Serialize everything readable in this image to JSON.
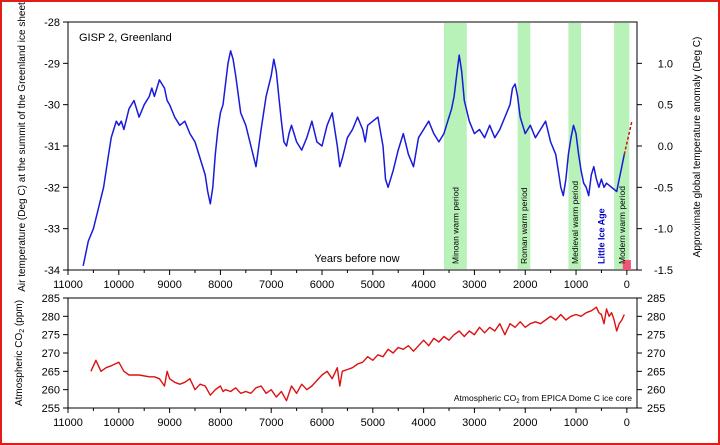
{
  "chart_data": [
    {
      "type": "line",
      "title": "GISP 2, Greenland",
      "xlabel": "Years before now",
      "ylabel": "Air temperature (Deg C) at the summit of the Greenland ice sheet",
      "y2label": "Approximate global temperature anomaly (Deg C)",
      "xlim": [
        11000,
        -200
      ],
      "x_reversed": true,
      "ylim": [
        -34,
        -28
      ],
      "y2lim": [
        -1.5,
        1.5
      ],
      "x_ticks": [
        "11000",
        "10000",
        "9000",
        "8000",
        "7000",
        "6000",
        "5000",
        "4000",
        "3000",
        "2000",
        "1000",
        "0"
      ],
      "x_tick_values": [
        11000,
        10000,
        9000,
        8000,
        7000,
        6000,
        5000,
        4000,
        3000,
        2000,
        1000,
        0
      ],
      "y_ticks": [
        "-28",
        "-29",
        "-30",
        "-31",
        "-32",
        "-33",
        "-34"
      ],
      "y_tick_values": [
        -28,
        -29,
        -30,
        -31,
        -32,
        -33,
        -34
      ],
      "y2_ticks": [
        "1.0",
        "0.5",
        "0.0",
        "-0.5",
        "-1.0",
        "-1.5"
      ],
      "y2_tick_values": [
        1.0,
        0.5,
        0.0,
        -0.5,
        -1.0,
        -1.5
      ],
      "grid": false,
      "series": [
        {
          "color": "#1a1adb",
          "x": [
            10700,
            10600,
            10500,
            10400,
            10300,
            10200,
            10150,
            10100,
            10050,
            10000,
            9950,
            9900,
            9800,
            9700,
            9600,
            9500,
            9400,
            9350,
            9300,
            9200,
            9100,
            9050,
            9000,
            8900,
            8800,
            8700,
            8600,
            8500,
            8400,
            8300,
            8250,
            8200,
            8150,
            8100,
            8050,
            8000,
            7950,
            7900,
            7850,
            7800,
            7750,
            7700,
            7600,
            7500,
            7400,
            7300,
            7200,
            7100,
            7000,
            6950,
            6900,
            6850,
            6800,
            6750,
            6700,
            6650,
            6600,
            6500,
            6400,
            6300,
            6200,
            6100,
            6000,
            5900,
            5800,
            5700,
            5650,
            5600,
            5500,
            5400,
            5300,
            5200,
            5150,
            5100,
            5000,
            4900,
            4800,
            4750,
            4700,
            4600,
            4500,
            4400,
            4300,
            4200,
            4100,
            4000,
            3900,
            3800,
            3700,
            3600,
            3500,
            3450,
            3400,
            3350,
            3300,
            3250,
            3200,
            3100,
            3000,
            2900,
            2800,
            2700,
            2600,
            2500,
            2400,
            2300,
            2250,
            2200,
            2150,
            2100,
            2050,
            2000,
            1900,
            1800,
            1700,
            1600,
            1500,
            1400,
            1350,
            1300,
            1250,
            1200,
            1150,
            1100,
            1050,
            1000,
            950,
            900,
            850,
            800,
            750,
            700,
            650,
            600,
            550,
            500,
            450,
            400,
            300,
            200,
            150,
            100,
            50
          ],
          "y": [
            -33.9,
            -33.3,
            -33.0,
            -32.5,
            -32.0,
            -31.2,
            -30.8,
            -30.6,
            -30.4,
            -30.5,
            -30.4,
            -30.6,
            -30.1,
            -29.9,
            -30.3,
            -30.0,
            -29.8,
            -29.6,
            -29.8,
            -29.4,
            -29.6,
            -29.9,
            -30.0,
            -30.3,
            -30.5,
            -30.4,
            -30.7,
            -30.9,
            -31.3,
            -31.7,
            -32.1,
            -32.4,
            -32.0,
            -31.2,
            -30.6,
            -30.2,
            -30.0,
            -29.5,
            -29.0,
            -28.7,
            -28.9,
            -29.3,
            -30.2,
            -30.5,
            -31.0,
            -31.5,
            -30.6,
            -29.8,
            -29.3,
            -28.9,
            -29.2,
            -29.8,
            -30.4,
            -30.9,
            -31.0,
            -30.7,
            -30.5,
            -30.9,
            -31.1,
            -30.8,
            -30.4,
            -30.9,
            -31.0,
            -30.5,
            -30.2,
            -31.0,
            -31.5,
            -31.3,
            -30.8,
            -30.6,
            -30.3,
            -30.6,
            -30.9,
            -30.5,
            -30.4,
            -30.3,
            -31.0,
            -31.8,
            -32.0,
            -31.6,
            -31.1,
            -30.7,
            -31.2,
            -31.5,
            -30.8,
            -30.6,
            -30.4,
            -30.7,
            -30.9,
            -30.7,
            -30.3,
            -30.1,
            -29.8,
            -29.3,
            -28.8,
            -29.2,
            -29.9,
            -30.4,
            -30.7,
            -30.6,
            -30.8,
            -30.5,
            -30.8,
            -30.6,
            -30.3,
            -30.0,
            -29.6,
            -29.5,
            -29.8,
            -30.3,
            -30.5,
            -30.7,
            -30.5,
            -30.8,
            -30.6,
            -30.4,
            -30.9,
            -31.2,
            -31.6,
            -32.0,
            -32.2,
            -31.8,
            -31.2,
            -30.8,
            -30.5,
            -30.7,
            -31.2,
            -31.6,
            -31.9,
            -32.0,
            -32.2,
            -31.7,
            -31.5,
            -31.8,
            -32.0,
            -31.8,
            -32.0,
            -31.9,
            -32.0,
            -32.1,
            -31.8,
            -31.5,
            -31.2
          ],
          "label": ""
        },
        {
          "color": "#cc1111",
          "dashed": true,
          "x": [
            50,
            -100
          ],
          "y": [
            -31.2,
            -30.4
          ],
          "label": ""
        }
      ],
      "warm_periods": [
        {
          "label": "Minoan warm period",
          "from": 3600,
          "to": 3150
        },
        {
          "label": "Roman warm period",
          "from": 2150,
          "to": 1900
        },
        {
          "label": "Medieval warm period",
          "from": 1150,
          "to": 900
        },
        {
          "label": "Modern warm period",
          "from": 250,
          "to": -50
        }
      ],
      "little_ice_age": {
        "label": "Little Ice Age",
        "x": 500
      },
      "modern_marker": {
        "x_from": 80,
        "x_to": -80,
        "color": "#ee5577"
      },
      "warm_color": "#b8f2b8",
      "cold_label_color": "#0000c8"
    },
    {
      "type": "line",
      "ylabel": "Atmospheric CO2 (ppm)",
      "annotation": "Atmospheric CO2 from EPICA Dome C ice core",
      "xlim": [
        11000,
        -200
      ],
      "x_reversed": true,
      "ylim": [
        255,
        285
      ],
      "x_ticks": [
        "11000",
        "10000",
        "9000",
        "8000",
        "7000",
        "6000",
        "5000",
        "4000",
        "3000",
        "2000",
        "1000",
        "0"
      ],
      "x_tick_values": [
        11000,
        10000,
        9000,
        8000,
        7000,
        6000,
        5000,
        4000,
        3000,
        2000,
        1000,
        0
      ],
      "y_ticks": [
        "285",
        "280",
        "275",
        "270",
        "265",
        "260",
        "255"
      ],
      "y_tick_values": [
        285,
        280,
        275,
        270,
        265,
        260,
        255
      ],
      "y2_ticks": [
        "285",
        "280",
        "275",
        "270",
        "265",
        "260",
        "255"
      ],
      "y2_tick_values": [
        285,
        280,
        275,
        270,
        265,
        260,
        255
      ],
      "grid": false,
      "series": [
        {
          "color": "#dd1111",
          "x": [
            10550,
            10450,
            10350,
            10250,
            10150,
            10000,
            9900,
            9800,
            9600,
            9400,
            9300,
            9200,
            9100,
            9050,
            9000,
            8900,
            8800,
            8700,
            8600,
            8500,
            8400,
            8300,
            8200,
            8100,
            8000,
            7950,
            7900,
            7800,
            7700,
            7600,
            7500,
            7400,
            7300,
            7200,
            7100,
            7000,
            6900,
            6800,
            6700,
            6600,
            6500,
            6400,
            6300,
            6200,
            6100,
            6000,
            5900,
            5800,
            5700,
            5650,
            5600,
            5500,
            5400,
            5300,
            5200,
            5100,
            5000,
            4900,
            4800,
            4700,
            4600,
            4500,
            4400,
            4300,
            4200,
            4100,
            4000,
            3900,
            3800,
            3700,
            3600,
            3500,
            3400,
            3300,
            3200,
            3100,
            3000,
            2900,
            2800,
            2700,
            2600,
            2500,
            2400,
            2300,
            2200,
            2100,
            2000,
            1900,
            1800,
            1700,
            1600,
            1500,
            1400,
            1300,
            1200,
            1100,
            1000,
            900,
            800,
            700,
            600,
            550,
            500,
            450,
            400,
            350,
            300,
            250,
            200,
            150,
            100,
            50
          ],
          "y": [
            265,
            268,
            265,
            266,
            266.5,
            267.5,
            265,
            264,
            264,
            263.5,
            263.5,
            263,
            261,
            265,
            263,
            262,
            261.5,
            262,
            263,
            260,
            261.5,
            261,
            258.5,
            260,
            261,
            259.5,
            260,
            259.5,
            260.5,
            259,
            259.5,
            259,
            260.5,
            261,
            259,
            260,
            258,
            259.5,
            257,
            261,
            259,
            261.5,
            260,
            261,
            262.5,
            264,
            265,
            263,
            266,
            261,
            265,
            265.5,
            266,
            267,
            267.5,
            269,
            268,
            269.5,
            269,
            271,
            270,
            271.5,
            271,
            272,
            270.5,
            272,
            273.5,
            272,
            274,
            273,
            274.5,
            273.5,
            275,
            276,
            274.5,
            276,
            275,
            277,
            275.5,
            277,
            276,
            278,
            275,
            278,
            277,
            278.5,
            277,
            278,
            278.5,
            278,
            279,
            280,
            279,
            280.5,
            279,
            280,
            280.5,
            280,
            281,
            281.5,
            282.5,
            281,
            280.5,
            278,
            282,
            280,
            281,
            279,
            276,
            278,
            279,
            280.5
          ],
          "label": ""
        }
      ]
    }
  ]
}
